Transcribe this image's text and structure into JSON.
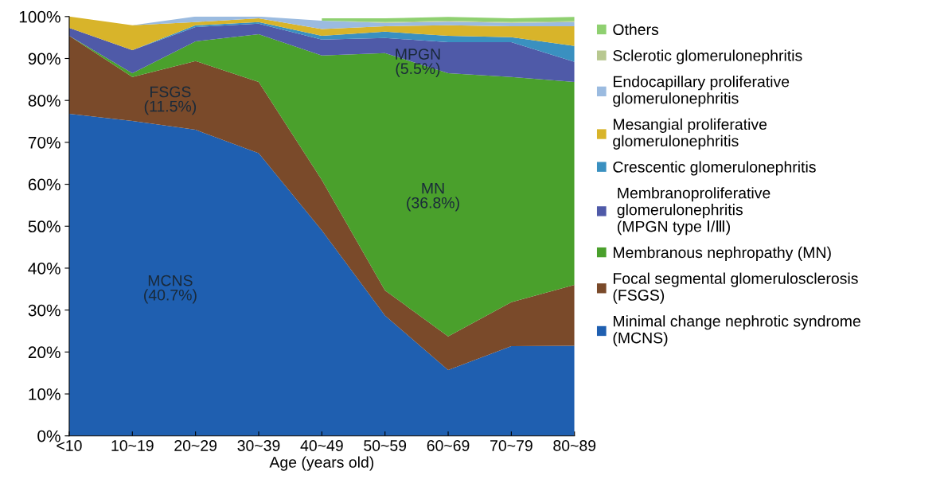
{
  "chart_data": {
    "type": "area",
    "stacked": true,
    "xlabel": "Age (years old)",
    "categories": [
      "<10",
      "10~19",
      "20~29",
      "30~39",
      "40~49",
      "50~59",
      "60~69",
      "70~79",
      "80~89"
    ],
    "series": [
      {
        "name": "Minimal change nephrotic syndrome\n(MCNS)",
        "color": "#1f5fb0",
        "values": [
          76.8,
          75.1,
          73.0,
          67.4,
          49.0,
          28.7,
          15.7,
          21.4,
          21.5
        ]
      },
      {
        "name": "Focal segmental glomerulosclerosis\n(FSGS)",
        "color": "#7a4a2a",
        "values": [
          18.6,
          10.5,
          16.4,
          17.0,
          12.0,
          6.0,
          8.0,
          10.5,
          14.5
        ]
      },
      {
        "name": "Membranous nephropathy (MN)",
        "color": "#4aa02c",
        "values": [
          0,
          0.9,
          4.7,
          11.4,
          29.7,
          56.6,
          62.8,
          53.7,
          48.4
        ]
      },
      {
        "name": " Membranoproliferative\n glomerulonephritis\n (MPGN type Ⅰ/Ⅲ)",
        "color": "#4f5aa8",
        "values": [
          1.9,
          5.5,
          3.4,
          2.5,
          3.8,
          3.6,
          7.4,
          8.3,
          4.8
        ]
      },
      {
        "name": "Crescentic glomerulonephritis",
        "color": "#3a90c0",
        "values": [
          0,
          0,
          0.4,
          0.4,
          0.9,
          1.5,
          1.5,
          1.2,
          3.8
        ]
      },
      {
        "name": "Mesangial proliferative\nglomerulonephritis",
        "color": "#d8b42a",
        "values": [
          2.7,
          5.9,
          0.8,
          0.9,
          1.6,
          1.3,
          2.5,
          2.6,
          4.7
        ]
      },
      {
        "name": "Endocapillary proliferative\nglomerulonephritis",
        "color": "#9bbbe0",
        "values": [
          0,
          0,
          1.3,
          0.4,
          2.0,
          0.8,
          0.9,
          0.8,
          1.0
        ]
      },
      {
        "name": "Sclerotic glomerulonephritis",
        "color": "#b8c890",
        "values": [
          0,
          0,
          0,
          0,
          0,
          0.2,
          0.2,
          0.2,
          0.2
        ]
      },
      {
        "name": "Others",
        "color": "#8fd070",
        "values": [
          null,
          null,
          null,
          null,
          0.6,
          0.9,
          0.9,
          0.9,
          1.0
        ]
      }
    ],
    "ylim": [
      0,
      100
    ],
    "yticks": [
      {
        "value": 0,
        "label": "0%"
      },
      {
        "value": 10,
        "label": "10%"
      },
      {
        "value": 20,
        "label": "20%"
      },
      {
        "value": 30,
        "label": "30%"
      },
      {
        "value": 40,
        "label": "40%"
      },
      {
        "value": 50,
        "label": "50%"
      },
      {
        "value": 60,
        "label": "60%"
      },
      {
        "value": 70,
        "label": "70%"
      },
      {
        "value": 80,
        "label": "80%"
      },
      {
        "value": 90,
        "label": "90%"
      },
      {
        "value": 100,
        "label": "100%"
      }
    ],
    "annotations": [
      "MCNS\n(40.7%)",
      "FSGS\n(11.5%)",
      "MPGN\n(5.5%)",
      "MN\n(36.8%)"
    ],
    "grid": false,
    "legend": "right"
  }
}
